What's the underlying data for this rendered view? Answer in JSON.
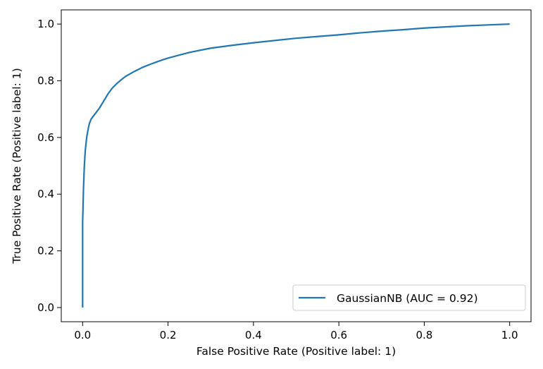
{
  "chart_data": {
    "type": "line",
    "xlabel": "False Positive Rate (Positive label: 1)",
    "ylabel": "True Positive Rate (Positive label: 1)",
    "xlim": [
      -0.05,
      1.05
    ],
    "ylim": [
      -0.05,
      1.05
    ],
    "xticks": [
      0.0,
      0.2,
      0.4,
      0.6,
      0.8,
      1.0
    ],
    "xtick_labels": [
      "0.0",
      "0.2",
      "0.4",
      "0.6",
      "0.8",
      "1.0"
    ],
    "yticks": [
      0.0,
      0.2,
      0.4,
      0.6,
      0.8,
      1.0
    ],
    "ytick_labels": [
      "0.0",
      "0.2",
      "0.4",
      "0.6",
      "0.8",
      "1.0"
    ],
    "grid": false,
    "legend_position": "lower-right",
    "series": [
      {
        "name": "GaussianNB (AUC = 0.92)",
        "color": "#1f77b4",
        "x": [
          0.0,
          0.0,
          0.002,
          0.004,
          0.006,
          0.008,
          0.01,
          0.013,
          0.016,
          0.02,
          0.025,
          0.03,
          0.04,
          0.05,
          0.06,
          0.07,
          0.08,
          0.09,
          0.1,
          0.12,
          0.14,
          0.16,
          0.18,
          0.2,
          0.25,
          0.3,
          0.35,
          0.4,
          0.45,
          0.5,
          0.55,
          0.6,
          0.65,
          0.7,
          0.75,
          0.8,
          0.85,
          0.9,
          0.95,
          1.0
        ],
        "y": [
          0.0,
          0.3,
          0.42,
          0.5,
          0.55,
          0.58,
          0.605,
          0.63,
          0.65,
          0.665,
          0.675,
          0.685,
          0.705,
          0.73,
          0.755,
          0.775,
          0.79,
          0.803,
          0.815,
          0.832,
          0.847,
          0.859,
          0.87,
          0.88,
          0.9,
          0.915,
          0.925,
          0.934,
          0.942,
          0.95,
          0.956,
          0.962,
          0.969,
          0.975,
          0.98,
          0.986,
          0.99,
          0.994,
          0.997,
          1.0
        ]
      }
    ]
  }
}
